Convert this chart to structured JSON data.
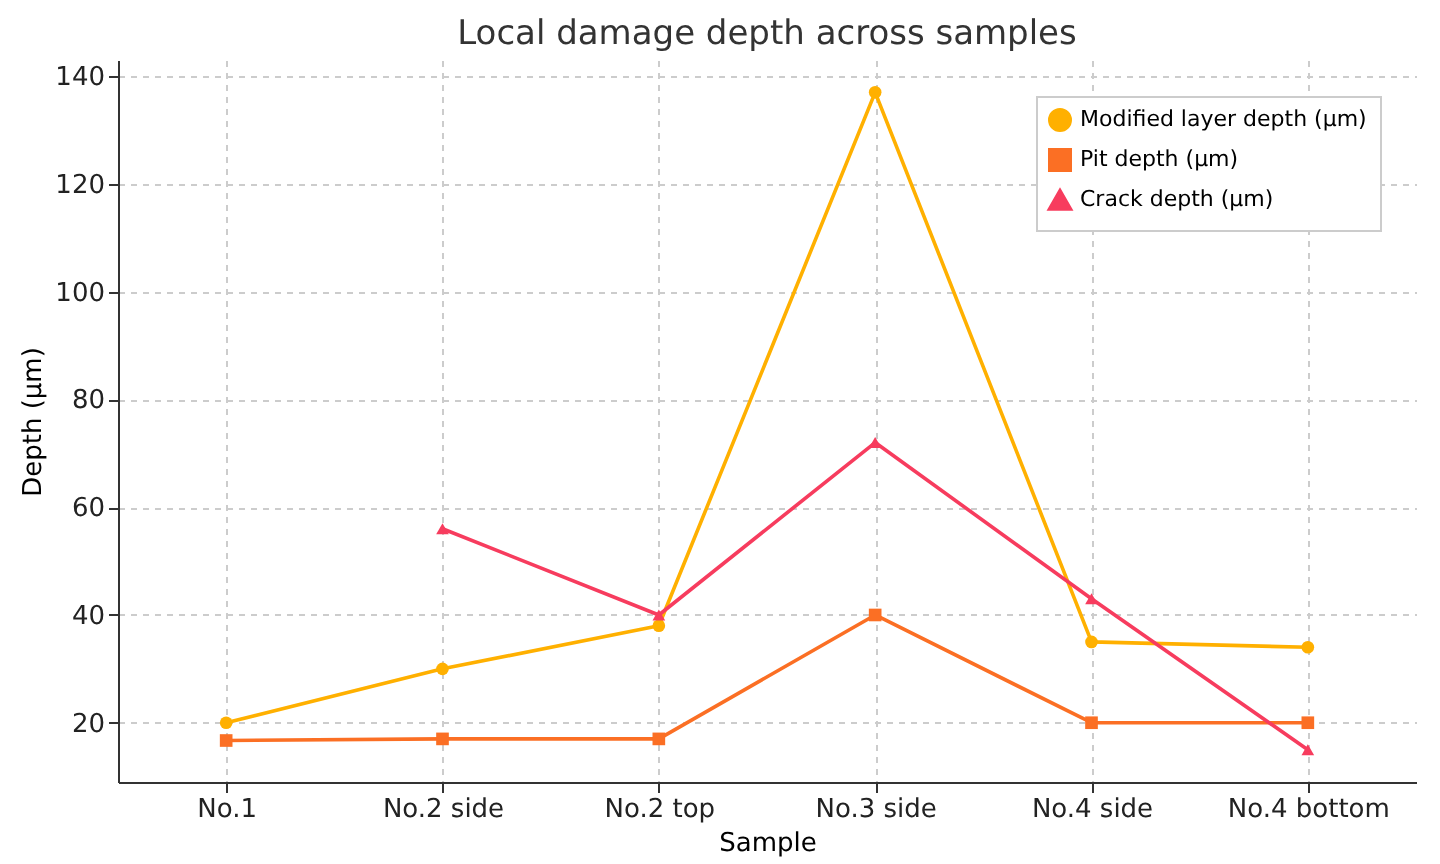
{
  "chart_data": {
    "type": "line",
    "title": "Local damage depth across samples",
    "xlabel": "Sample",
    "ylabel": "Depth (µm)",
    "categories": [
      "No.1",
      "No.2 side",
      "No.2 top",
      "No.3 side",
      "No.4 side",
      "No.4 bottom"
    ],
    "series": [
      {
        "name": "Modified layer depth (µm)",
        "color": "#ffb000",
        "marker": "circle",
        "values": [
          20,
          30,
          38,
          137,
          35,
          34
        ]
      },
      {
        "name": "Pit depth (µm)",
        "color": "#fb6f24",
        "marker": "square",
        "values": [
          16.7,
          17,
          17,
          40,
          20,
          20
        ]
      },
      {
        "name": "Crack depth (µm)",
        "color": "#f73c5e",
        "marker": "triangle",
        "values": [
          null,
          56,
          40,
          72,
          43,
          15
        ]
      }
    ],
    "ylim": [
      9,
      143
    ],
    "yticks": [
      20,
      40,
      60,
      80,
      100,
      120,
      140
    ],
    "grid": true,
    "legend": "top right",
    "line_style": "solid"
  }
}
